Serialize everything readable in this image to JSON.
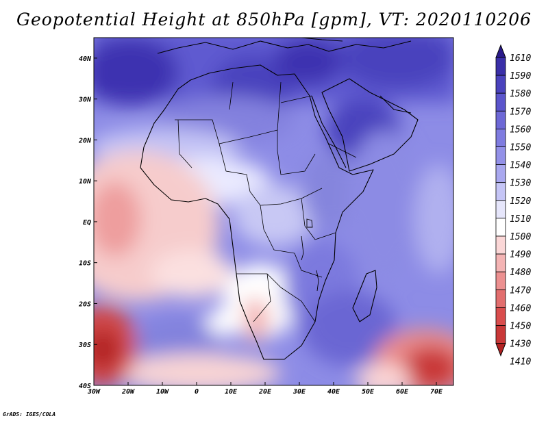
{
  "title": "Geopotential Height at 850hPa [gpm], VT: 2020110206",
  "credit": "GrADS: IGES/COLA",
  "map": {
    "variable": "Geopotential Height",
    "level": "850hPa",
    "units": "gpm",
    "valid_time": "2020110206",
    "lon_range": [
      -30,
      75
    ],
    "lat_range": [
      -40,
      45
    ],
    "lon_ticks": [
      {
        "value": -30,
        "label": "30W"
      },
      {
        "value": -20,
        "label": "20W"
      },
      {
        "value": -10,
        "label": "10W"
      },
      {
        "value": 0,
        "label": "0"
      },
      {
        "value": 10,
        "label": "10E"
      },
      {
        "value": 20,
        "label": "20E"
      },
      {
        "value": 30,
        "label": "30E"
      },
      {
        "value": 40,
        "label": "40E"
      },
      {
        "value": 50,
        "label": "50E"
      },
      {
        "value": 60,
        "label": "60E"
      },
      {
        "value": 70,
        "label": "70E"
      }
    ],
    "lat_ticks": [
      {
        "value": 40,
        "label": "40N"
      },
      {
        "value": 30,
        "label": "30N"
      },
      {
        "value": 20,
        "label": "20N"
      },
      {
        "value": 10,
        "label": "10N"
      },
      {
        "value": 0,
        "label": "EQ"
      },
      {
        "value": -10,
        "label": "10S"
      },
      {
        "value": -20,
        "label": "20S"
      },
      {
        "value": -30,
        "label": "30S"
      },
      {
        "value": -40,
        "label": "40S"
      }
    ]
  },
  "colorbar": {
    "levels": [
      "1610",
      "1590",
      "1580",
      "1570",
      "1560",
      "1550",
      "1540",
      "1530",
      "1520",
      "1510",
      "1500",
      "1490",
      "1480",
      "1470",
      "1460",
      "1450",
      "1430",
      "1410"
    ],
    "colors": [
      "#2a1a8a",
      "#3a2fa8",
      "#4a42bd",
      "#5b55cc",
      "#6d68d6",
      "#7f7ce0",
      "#9391e8",
      "#a9a8ef",
      "#c5c5f6",
      "#e6e6fb",
      "#ffffff",
      "#fbd7d7",
      "#f4b4b4",
      "#ec9090",
      "#e26e6e",
      "#d94d4d",
      "#c93838",
      "#b22222"
    ]
  }
}
